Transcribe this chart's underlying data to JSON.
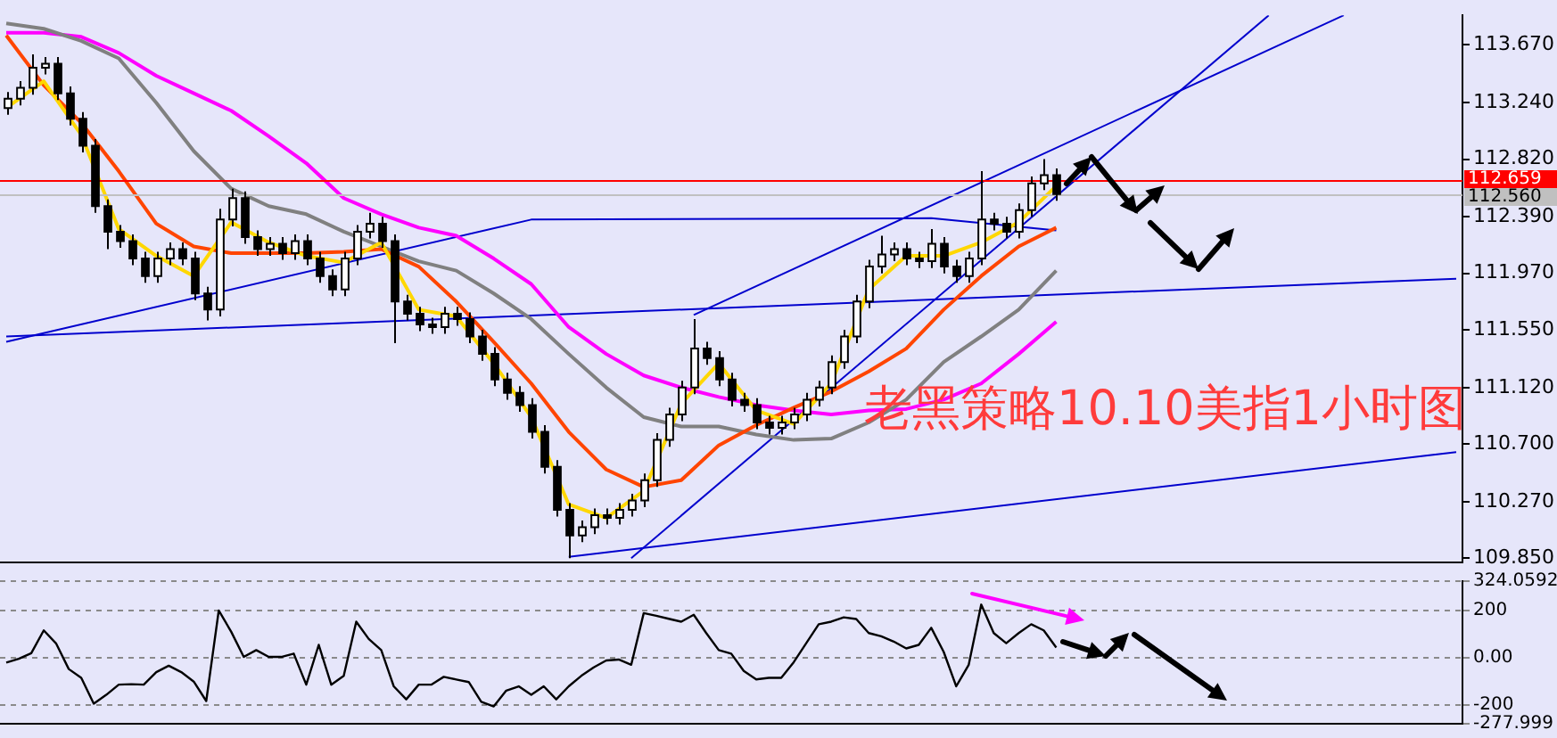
{
  "chart_data": [
    {
      "type": "candlestick",
      "annotations": [
        "老黑策略10.10美指1小时图"
      ],
      "categories": [
        null,
        null,
        null,
        null,
        null,
        null,
        null,
        null,
        null,
        null,
        null,
        null,
        null,
        null,
        null,
        null,
        null,
        null,
        null,
        null,
        null,
        null,
        null,
        null,
        null,
        null,
        null,
        null,
        null,
        null,
        null,
        null,
        null,
        null,
        null,
        null,
        null,
        null,
        null,
        null,
        null,
        null,
        null,
        null,
        null,
        null,
        null,
        null,
        null,
        null,
        null,
        null,
        null,
        null,
        null,
        null,
        null,
        null,
        null,
        null,
        null,
        null,
        null,
        null,
        null,
        null,
        null,
        null,
        null,
        null,
        null,
        null,
        null,
        null,
        null,
        null,
        null,
        null,
        null,
        null,
        null,
        null,
        null,
        null,
        null,
        null,
        null,
        null,
        null,
        null,
        null,
        null,
        null,
        null,
        null,
        null,
        null,
        null,
        null,
        null,
        null,
        null,
        null,
        null,
        null,
        null,
        null,
        null,
        null,
        null,
        null,
        null,
        null,
        null,
        null,
        null,
        null
      ],
      "ohlc": [
        [
          113.2,
          113.32,
          113.15,
          113.27
        ],
        [
          113.27,
          113.4,
          113.22,
          113.35
        ],
        [
          113.35,
          113.6,
          113.3,
          113.5
        ],
        [
          113.5,
          113.58,
          113.45,
          113.53
        ],
        [
          113.53,
          113.58,
          113.26,
          113.31
        ],
        [
          113.31,
          113.36,
          113.07,
          113.12
        ],
        [
          113.12,
          113.17,
          112.87,
          112.92
        ],
        [
          112.92,
          112.97,
          112.42,
          112.47
        ],
        [
          112.47,
          112.52,
          112.15,
          112.28
        ],
        [
          112.28,
          112.33,
          112.16,
          112.21
        ],
        [
          112.21,
          112.26,
          112.03,
          112.08
        ],
        [
          112.08,
          112.13,
          111.9,
          111.95
        ],
        [
          111.95,
          112.13,
          111.9,
          112.08
        ],
        [
          112.08,
          112.2,
          112.03,
          112.15
        ],
        [
          112.15,
          112.2,
          112.03,
          112.08
        ],
        [
          112.08,
          112.13,
          111.77,
          111.82
        ],
        [
          111.82,
          111.87,
          111.62,
          111.7
        ],
        [
          111.7,
          112.45,
          111.65,
          112.37
        ],
        [
          112.37,
          112.6,
          112.32,
          112.53
        ],
        [
          112.53,
          112.58,
          112.19,
          112.24
        ],
        [
          112.24,
          112.29,
          112.1,
          112.15
        ],
        [
          112.15,
          112.24,
          112.1,
          112.19
        ],
        [
          112.19,
          112.24,
          112.07,
          112.12
        ],
        [
          112.12,
          112.26,
          112.07,
          112.21
        ],
        [
          112.21,
          112.26,
          112.03,
          112.08
        ],
        [
          112.08,
          112.13,
          111.9,
          111.95
        ],
        [
          111.95,
          112.0,
          111.8,
          111.85
        ],
        [
          111.85,
          112.13,
          111.8,
          112.08
        ],
        [
          112.08,
          112.33,
          112.03,
          112.28
        ],
        [
          112.28,
          112.42,
          112.23,
          112.34
        ],
        [
          112.34,
          112.39,
          112.16,
          112.21
        ],
        [
          112.21,
          112.26,
          111.45,
          111.76
        ],
        [
          111.76,
          111.81,
          111.62,
          111.67
        ],
        [
          111.67,
          111.72,
          111.54,
          111.59
        ],
        [
          111.59,
          111.64,
          111.52,
          111.57
        ],
        [
          111.57,
          111.72,
          111.52,
          111.67
        ],
        [
          111.67,
          111.72,
          111.58,
          111.63
        ],
        [
          111.63,
          111.68,
          111.45,
          111.5
        ],
        [
          111.5,
          111.55,
          111.32,
          111.37
        ],
        [
          111.37,
          111.42,
          111.13,
          111.18
        ],
        [
          111.18,
          111.23,
          111.03,
          111.08
        ],
        [
          111.08,
          111.13,
          110.94,
          110.99
        ],
        [
          110.99,
          111.04,
          110.74,
          110.79
        ],
        [
          110.79,
          110.84,
          110.48,
          110.53
        ],
        [
          110.53,
          110.58,
          110.16,
          110.21
        ],
        [
          110.21,
          110.26,
          109.85,
          110.02
        ],
        [
          110.02,
          110.13,
          109.97,
          110.08
        ],
        [
          110.08,
          110.22,
          110.03,
          110.17
        ],
        [
          110.17,
          110.22,
          110.1,
          110.15
        ],
        [
          110.15,
          110.26,
          110.1,
          110.21
        ],
        [
          110.21,
          110.33,
          110.16,
          110.28
        ],
        [
          110.28,
          110.48,
          110.23,
          110.43
        ],
        [
          110.43,
          110.78,
          110.38,
          110.73
        ],
        [
          110.73,
          110.97,
          110.68,
          110.92
        ],
        [
          110.92,
          111.17,
          110.87,
          111.12
        ],
        [
          111.12,
          111.63,
          111.07,
          111.41
        ],
        [
          111.41,
          111.46,
          111.29,
          111.34
        ],
        [
          111.34,
          111.39,
          111.13,
          111.18
        ],
        [
          111.18,
          111.23,
          110.98,
          111.03
        ],
        [
          111.03,
          111.08,
          110.94,
          110.99
        ],
        [
          110.99,
          111.04,
          110.81,
          110.86
        ],
        [
          110.86,
          110.91,
          110.77,
          110.82
        ],
        [
          110.82,
          110.91,
          110.77,
          110.86
        ],
        [
          110.86,
          110.97,
          110.81,
          110.92
        ],
        [
          110.92,
          111.08,
          110.87,
          111.03
        ],
        [
          111.03,
          111.17,
          110.98,
          111.12
        ],
        [
          111.12,
          111.36,
          111.07,
          111.31
        ],
        [
          111.31,
          111.55,
          111.26,
          111.5
        ],
        [
          111.5,
          111.81,
          111.45,
          111.76
        ],
        [
          111.76,
          112.07,
          111.71,
          112.02
        ],
        [
          112.02,
          112.25,
          111.97,
          112.11
        ],
        [
          112.11,
          112.2,
          112.06,
          112.15
        ],
        [
          112.15,
          112.2,
          112.03,
          112.08
        ],
        [
          112.08,
          112.13,
          112.01,
          112.06
        ],
        [
          112.06,
          112.3,
          112.01,
          112.19
        ],
        [
          112.19,
          112.24,
          111.97,
          112.02
        ],
        [
          112.02,
          112.07,
          111.9,
          111.95
        ],
        [
          111.95,
          112.13,
          111.9,
          112.08
        ],
        [
          112.08,
          112.73,
          112.03,
          112.37
        ],
        [
          112.37,
          112.42,
          112.29,
          112.34
        ],
        [
          112.34,
          112.39,
          112.23,
          112.28
        ],
        [
          112.28,
          112.49,
          112.23,
          112.44
        ],
        [
          112.44,
          112.69,
          112.39,
          112.64
        ],
        [
          112.64,
          112.82,
          112.59,
          112.7
        ],
        [
          112.7,
          112.75,
          112.51,
          112.56
        ],
        null,
        null,
        null,
        null,
        null,
        null,
        null,
        null,
        null,
        null,
        null,
        null,
        null,
        null,
        null,
        null,
        null,
        null,
        null,
        null,
        null,
        null,
        null,
        null,
        null,
        null,
        null,
        null,
        null,
        null,
        null,
        null
      ],
      "series": [
        {
          "type": "line",
          "color": "#ffd700",
          "values": [
            113.2,
            null,
            null,
            113.4,
            null,
            null,
            113.0,
            null,
            null,
            112.3,
            null,
            null,
            112.1,
            null,
            null,
            111.95,
            null,
            null,
            112.35,
            null,
            null,
            112.2,
            null,
            null,
            112.1,
            null,
            null,
            112.05,
            null,
            null,
            112.2,
            null,
            null,
            111.7,
            null,
            null,
            111.65,
            null,
            null,
            111.3,
            null,
            null,
            110.9,
            null,
            null,
            110.25,
            null,
            null,
            110.15,
            null,
            null,
            110.35,
            null,
            null,
            111.0,
            null,
            null,
            111.3,
            null,
            null,
            110.95,
            null,
            null,
            110.85,
            null,
            null,
            111.15,
            null,
            null,
            111.85,
            null,
            null,
            112.1,
            null,
            null,
            112.1,
            null,
            null,
            112.2,
            null,
            null,
            112.35,
            null,
            null,
            112.62,
            null,
            null,
            null,
            null,
            null,
            null,
            null,
            null,
            null,
            null,
            null,
            null,
            null,
            null,
            null,
            null,
            null,
            null,
            null,
            null,
            null,
            null,
            null,
            null,
            null,
            null,
            null,
            null,
            null,
            null,
            null,
            null
          ]
        },
        {
          "type": "line",
          "color": "#ff4500",
          "values": [
            113.74,
            null,
            null,
            113.37,
            null,
            null,
            113.09,
            null,
            null,
            112.73,
            null,
            null,
            112.34,
            null,
            null,
            112.17,
            null,
            null,
            112.12,
            null,
            null,
            112.12,
            null,
            null,
            112.12,
            null,
            null,
            112.13,
            null,
            null,
            112.15,
            null,
            null,
            112.02,
            null,
            null,
            111.76,
            null,
            null,
            111.46,
            null,
            null,
            111.15,
            null,
            null,
            110.79,
            null,
            null,
            110.51,
            null,
            null,
            110.38,
            null,
            null,
            110.43,
            null,
            null,
            110.69,
            null,
            null,
            110.84,
            null,
            null,
            110.97,
            null,
            null,
            111.09,
            null,
            null,
            111.24,
            null,
            null,
            111.41,
            null,
            null,
            111.7,
            null,
            null,
            111.95,
            null,
            null,
            112.17,
            null,
            null,
            112.31,
            null,
            null,
            null,
            null,
            null,
            null,
            null,
            null,
            null,
            null,
            null,
            null,
            null,
            null,
            null,
            null,
            null,
            null,
            null,
            null,
            null,
            null,
            null,
            null,
            null,
            null,
            null,
            null,
            null,
            null,
            null,
            null
          ]
        },
        {
          "type": "line",
          "color": "#808080",
          "values": [
            113.83,
            null,
            null,
            113.79,
            null,
            null,
            113.7,
            null,
            null,
            113.57,
            null,
            null,
            113.24,
            null,
            null,
            112.88,
            null,
            null,
            112.6,
            null,
            null,
            112.47,
            null,
            null,
            112.41,
            null,
            null,
            112.28,
            null,
            null,
            112.17,
            null,
            null,
            112.06,
            null,
            null,
            111.99,
            null,
            null,
            111.82,
            null,
            null,
            111.63,
            null,
            null,
            111.37,
            null,
            null,
            111.12,
            null,
            null,
            110.9,
            null,
            null,
            110.83,
            null,
            null,
            110.83,
            null,
            null,
            110.77,
            null,
            null,
            110.73,
            null,
            null,
            110.74,
            null,
            null,
            110.86,
            null,
            null,
            111.03,
            null,
            null,
            111.31,
            null,
            null,
            111.5,
            null,
            null,
            111.7,
            null,
            null,
            111.99,
            null,
            null,
            null,
            null,
            null,
            null,
            null,
            null,
            null,
            null,
            null,
            null,
            null,
            null,
            null,
            null,
            null,
            null,
            null,
            null,
            null,
            null,
            null,
            null,
            null,
            null,
            null,
            null,
            null,
            null,
            null,
            null
          ]
        },
        {
          "type": "line",
          "color": "#ff00ff",
          "values": [
            113.76,
            null,
            null,
            113.76,
            null,
            null,
            113.73,
            null,
            null,
            113.61,
            null,
            null,
            113.44,
            null,
            null,
            113.31,
            null,
            null,
            113.18,
            null,
            null,
            112.99,
            null,
            null,
            112.79,
            null,
            null,
            112.53,
            null,
            null,
            112.41,
            null,
            null,
            112.31,
            null,
            null,
            112.25,
            null,
            null,
            112.08,
            null,
            null,
            111.89,
            null,
            null,
            111.57,
            null,
            null,
            111.37,
            null,
            null,
            111.21,
            null,
            null,
            111.12,
            null,
            null,
            111.05,
            null,
            null,
            110.99,
            null,
            null,
            110.95,
            null,
            null,
            110.92,
            null,
            null,
            110.95,
            null,
            null,
            110.96,
            null,
            null,
            111.03,
            null,
            null,
            111.15,
            null,
            null,
            111.37,
            null,
            null,
            111.61,
            null,
            null,
            null,
            null,
            null,
            null,
            null,
            null,
            null,
            null,
            null,
            null,
            null,
            null,
            null,
            null,
            null,
            null,
            null,
            null,
            null,
            null,
            null,
            null,
            null,
            null,
            null,
            null,
            null,
            null,
            null,
            null
          ]
        },
        {
          "type": "line",
          "color": "#0000cd",
          "values": [
            111.5,
            null,
            null,
            null,
            null,
            null,
            null,
            null,
            null,
            null,
            null,
            null,
            null,
            null,
            null,
            null,
            null,
            null,
            null,
            null,
            null,
            null,
            null,
            null,
            null,
            null,
            null,
            null,
            null,
            null,
            null,
            null,
            null,
            null,
            null,
            null,
            null,
            null,
            null,
            null,
            null,
            null,
            null,
            null,
            null,
            null,
            null,
            null,
            null,
            null,
            null,
            null,
            null,
            null,
            null,
            null,
            null,
            null,
            null,
            null,
            null,
            null,
            null,
            null,
            null,
            null,
            null,
            null,
            null,
            null,
            null,
            null,
            null,
            null,
            null,
            null,
            null,
            null,
            null,
            null,
            null,
            null,
            null,
            null,
            null,
            null,
            null,
            null,
            null,
            null,
            null,
            null,
            null,
            null,
            null,
            null,
            null,
            null,
            null,
            null,
            null,
            null,
            null,
            null,
            null,
            null,
            null,
            null,
            null,
            null,
            null,
            null,
            null,
            null,
            null,
            null,
            111.93
          ]
        },
        {
          "type": "line",
          "color": "#0000cd",
          "values": [
            111.46,
            null,
            null,
            null,
            null,
            null,
            null,
            null,
            null,
            null,
            null,
            null,
            null,
            null,
            null,
            null,
            null,
            null,
            null,
            null,
            null,
            null,
            null,
            null,
            null,
            null,
            null,
            null,
            null,
            null,
            null,
            null,
            null,
            null,
            null,
            null,
            null,
            null,
            null,
            null,
            null,
            null,
            112.37,
            null,
            null,
            null,
            null,
            null,
            null,
            null,
            null,
            null,
            null,
            null,
            null,
            null,
            null,
            null,
            null,
            null,
            null,
            null,
            null,
            null,
            null,
            null,
            null,
            null,
            null,
            null,
            null,
            null,
            null,
            null,
            112.38,
            null,
            null,
            null,
            null,
            null,
            null,
            null,
            null,
            null,
            112.29,
            null,
            null,
            null,
            null,
            null,
            null,
            null,
            null,
            null,
            null,
            null,
            null,
            null,
            null,
            null,
            null,
            null,
            null,
            null,
            null,
            null,
            null,
            null,
            null,
            null,
            null,
            null,
            null,
            null,
            null,
            null,
            null
          ]
        },
        {
          "type": "line",
          "color": "#0000cd",
          "values": [
            null,
            null,
            null,
            null,
            null,
            null,
            null,
            null,
            null,
            null,
            null,
            null,
            null,
            null,
            null,
            null,
            null,
            null,
            null,
            null,
            null,
            null,
            null,
            null,
            null,
            null,
            null,
            null,
            null,
            null,
            null,
            null,
            null,
            null,
            null,
            null,
            null,
            null,
            null,
            null,
            null,
            null,
            null,
            null,
            null,
            109.86,
            null,
            null,
            null,
            null,
            null,
            null,
            null,
            null,
            null,
            null,
            null,
            null,
            null,
            null,
            null,
            null,
            null,
            null,
            null,
            null,
            null,
            null,
            null,
            null,
            null,
            null,
            null,
            null,
            null,
            null,
            null,
            null,
            null,
            null,
            null,
            null,
            null,
            null,
            null,
            null,
            null,
            null,
            null,
            null,
            null,
            null,
            null,
            null,
            null,
            null,
            null,
            null,
            null,
            null,
            null,
            null,
            null,
            null,
            null,
            null,
            null,
            null,
            null,
            null,
            null,
            null,
            null,
            null,
            null,
            null,
            110.64
          ]
        },
        {
          "type": "line",
          "color": "#0000cd",
          "values": [
            null,
            null,
            null,
            null,
            null,
            null,
            null,
            null,
            null,
            null,
            null,
            null,
            null,
            null,
            null,
            null,
            null,
            null,
            null,
            null,
            null,
            null,
            null,
            null,
            null,
            null,
            null,
            null,
            null,
            null,
            null,
            null,
            null,
            null,
            null,
            null,
            null,
            null,
            null,
            null,
            null,
            null,
            null,
            null,
            null,
            null,
            null,
            null,
            null,
            null,
            null,
            null,
            null,
            null,
            null,
            111.66,
            null,
            null,
            null,
            null,
            null,
            null,
            null,
            null,
            null,
            null,
            null,
            null,
            null,
            null,
            null,
            null,
            null,
            null,
            null,
            null,
            null,
            null,
            null,
            null,
            null,
            null,
            null,
            null,
            null,
            null,
            null,
            null,
            null,
            null,
            null,
            null,
            null,
            null,
            null,
            null,
            null,
            null,
            null,
            null,
            null,
            null,
            null,
            null,
            null,
            null,
            null,
            113.89,
            null,
            null,
            null,
            null,
            null,
            null,
            null,
            null,
            null
          ]
        },
        {
          "type": "line",
          "color": "#0000cd",
          "values": [
            null,
            null,
            null,
            null,
            null,
            null,
            null,
            null,
            null,
            null,
            null,
            null,
            null,
            null,
            null,
            null,
            null,
            null,
            null,
            null,
            null,
            null,
            null,
            null,
            null,
            null,
            null,
            null,
            null,
            null,
            null,
            null,
            null,
            null,
            null,
            null,
            null,
            null,
            null,
            null,
            null,
            null,
            null,
            null,
            null,
            null,
            null,
            null,
            null,
            null,
            109.85,
            null,
            null,
            null,
            null,
            null,
            null,
            null,
            null,
            null,
            null,
            null,
            null,
            null,
            null,
            null,
            null,
            null,
            null,
            null,
            null,
            null,
            null,
            null,
            null,
            null,
            null,
            null,
            null,
            null,
            null,
            null,
            null,
            null,
            null,
            null,
            null,
            null,
            null,
            null,
            null,
            null,
            null,
            null,
            null,
            null,
            null,
            null,
            null,
            null,
            null,
            113.89,
            null,
            null,
            null,
            null,
            null,
            null,
            null,
            null,
            null,
            null,
            null,
            null,
            null,
            null,
            null
          ]
        }
      ],
      "ylim": [
        109.82,
        113.89
      ],
      "yticks": [
        {
          "value": 109.85,
          "label": "109.850"
        },
        {
          "value": 110.27,
          "label": "110.270"
        },
        {
          "value": 110.7,
          "label": "110.700"
        },
        {
          "value": 111.12,
          "label": "111.120"
        },
        {
          "value": 111.55,
          "label": "111.550"
        },
        {
          "value": 111.97,
          "label": "111.970"
        },
        {
          "value": 112.39,
          "label": "112.390"
        },
        {
          "value": 112.82,
          "label": "112.820"
        },
        {
          "value": 113.24,
          "label": "113.240"
        },
        {
          "value": 113.67,
          "label": "113.670"
        }
      ],
      "ref_lines": [
        {
          "axis": "y",
          "value": 112.659,
          "label": "112.659",
          "color": "#ff0000"
        },
        {
          "axis": "y",
          "value": 112.56,
          "label": "112.560",
          "color": "#c0c0c0"
        }
      ]
    },
    {
      "type": "line",
      "categories": [
        null,
        null,
        null,
        null,
        null,
        null,
        null,
        null,
        null,
        null,
        null,
        null,
        null,
        null,
        null,
        null,
        null,
        null,
        null,
        null,
        null,
        null,
        null,
        null,
        null,
        null,
        null,
        null,
        null,
        null,
        null,
        null,
        null,
        null,
        null,
        null,
        null,
        null,
        null,
        null,
        null,
        null,
        null,
        null,
        null,
        null,
        null,
        null,
        null,
        null,
        null,
        null,
        null,
        null,
        null,
        null,
        null,
        null,
        null,
        null,
        null,
        null,
        null,
        null,
        null,
        null,
        null,
        null,
        null,
        null,
        null,
        null,
        null,
        null,
        null,
        null,
        null,
        null,
        null,
        null,
        null,
        null,
        null,
        null,
        null,
        null,
        null,
        null,
        null,
        null,
        null,
        null,
        null,
        null,
        null,
        null,
        null,
        null,
        null,
        null,
        null,
        null,
        null,
        null,
        null,
        null,
        null,
        null,
        null,
        null,
        null,
        null,
        null,
        null,
        null,
        null,
        null
      ],
      "series": [
        {
          "type": "line",
          "color": "#000000",
          "values": [
            -20,
            -4,
            20,
            116,
            60,
            -47,
            -84,
            -193,
            -156,
            -113,
            -111,
            -113,
            -60,
            -33,
            -60,
            -100,
            -182,
            200,
            110,
            4,
            33,
            4,
            4,
            18,
            -113,
            55,
            -113,
            -76,
            153,
            80,
            33,
            -120,
            -175,
            -113,
            -113,
            -80,
            -91,
            -102,
            -185,
            -205,
            -138,
            -120,
            -156,
            -120,
            -175,
            -120,
            -76,
            -40,
            -11,
            -7,
            -29,
            189,
            178,
            165,
            153,
            182,
            105,
            33,
            18,
            -55,
            -91,
            -84,
            -84,
            -18,
            62,
            142,
            153,
            171,
            164,
            105,
            91,
            69,
            40,
            55,
            127,
            25,
            -120,
            -29,
            225,
            105,
            62,
            105,
            142,
            116,
            44,
            null,
            null,
            null,
            null,
            null,
            null,
            null,
            null,
            null,
            null,
            null,
            null,
            null,
            null,
            null,
            null,
            null,
            null,
            null,
            null,
            null,
            null,
            null,
            null,
            null,
            null,
            null,
            null,
            null,
            null,
            null,
            null
          ]
        }
      ],
      "ylim": [
        -277.999,
        324.0592
      ],
      "yticks": [
        {
          "value": 324.0592,
          "label": "324.0592"
        },
        200,
        {
          "value": 0,
          "label": "0.00"
        },
        -200,
        {
          "value": -277.999,
          "label": "-277.999"
        }
      ],
      "grid": "y"
    }
  ]
}
